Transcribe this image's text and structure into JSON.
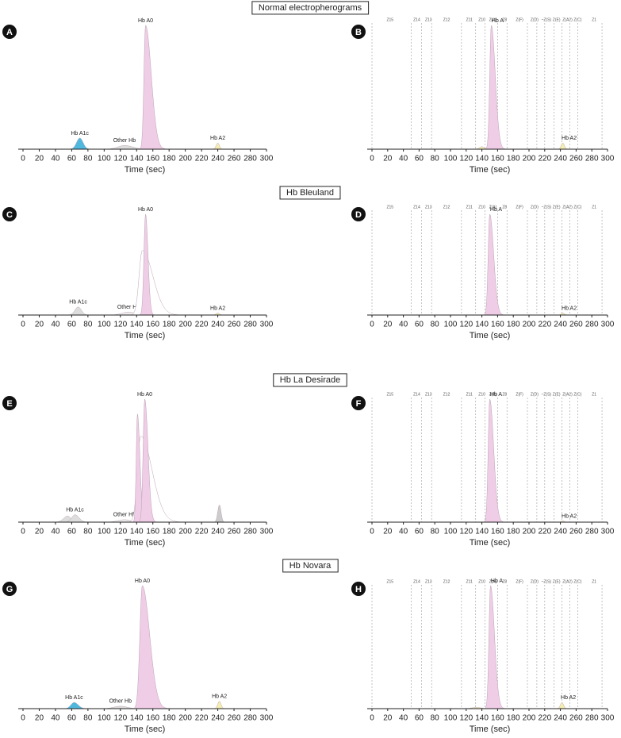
{
  "chart_data": [
    {
      "type": "electropherogram",
      "panel": "A",
      "title": "Normal electropherograms",
      "xlabel": "Time (sec)",
      "xlim": [
        0,
        300
      ],
      "xticks": [
        0,
        20,
        40,
        60,
        80,
        100,
        120,
        140,
        160,
        180,
        200,
        220,
        240,
        260,
        280,
        300
      ],
      "peaks": [
        {
          "label": "Hb A1c",
          "x": 70,
          "height": 9,
          "sd": [
            4,
            4
          ],
          "color": "#4fb8dc"
        },
        {
          "label": "Other Hb",
          "x": 125,
          "height": 3,
          "sd": [
            8,
            10
          ],
          "color": "#dddddd"
        },
        {
          "label": "Hb A0",
          "x": 151,
          "height": 100,
          "sd": [
            2,
            7
          ],
          "color": "#f0cde6"
        },
        {
          "label": "Hb A2",
          "x": 240,
          "height": 5,
          "sd": [
            2,
            2
          ],
          "color": "#f5eeb0"
        }
      ]
    },
    {
      "type": "zone-electropherogram",
      "panel": "B",
      "xlabel": "Time (sec)",
      "xlim": [
        0,
        300
      ],
      "xticks": [
        0,
        20,
        40,
        60,
        80,
        100,
        120,
        140,
        160,
        180,
        200,
        220,
        240,
        260,
        280,
        300
      ],
      "zones": [
        {
          "label": "Z15",
          "x": 23
        },
        {
          "label": "Z14",
          "x": 57
        },
        {
          "label": "Z13",
          "x": 72
        },
        {
          "label": "Z12",
          "x": 95
        },
        {
          "label": "Z11",
          "x": 124
        },
        {
          "label": "Z10",
          "x": 140
        },
        {
          "label": "Z(A)",
          "x": 154
        },
        {
          "label": "Z8",
          "x": 169
        },
        {
          "label": "Z(F)",
          "x": 188
        },
        {
          "label": "Z(D)",
          "x": 207
        },
        {
          "label": "~Z(S)",
          "x": 222
        },
        {
          "label": "Z(E)",
          "x": 235
        },
        {
          "label": "Z(A2)",
          "x": 249
        },
        {
          "label": "Z(C)",
          "x": 262
        },
        {
          "label": "Z1",
          "x": 283
        }
      ],
      "zone_lines": [
        0,
        50,
        63,
        76,
        114,
        132,
        144,
        160,
        172,
        198,
        210,
        220,
        232,
        242,
        252,
        262,
        293
      ],
      "peaks": [
        {
          "x": 140,
          "height": 2,
          "sd": [
            3,
            3
          ],
          "color": "#f5eeb0"
        },
        {
          "label": "Hb A",
          "x": 152,
          "height": 100,
          "sd": [
            2,
            5
          ],
          "color": "#f0cde6"
        },
        {
          "label": "Hb A2",
          "x": 243,
          "height": 5,
          "sd": [
            2,
            2
          ],
          "color": "#f5eeb0"
        }
      ]
    },
    {
      "type": "electropherogram",
      "panel": "C",
      "title": "Hb Bleuland",
      "xlabel": "Time (sec)",
      "xlim": [
        0,
        300
      ],
      "xticks": [
        0,
        20,
        40,
        60,
        80,
        100,
        120,
        140,
        160,
        180,
        200,
        220,
        240,
        260,
        280,
        300
      ],
      "peaks": [
        {
          "label": "Hb A1c",
          "x": 68,
          "height": 8,
          "sd": [
            4,
            4
          ],
          "color": "#dddddd"
        },
        {
          "label": "Other Hb",
          "x": 130,
          "height": 3,
          "sd": [
            8,
            8
          ],
          "color": "#eeeeee"
        },
        {
          "x": 147,
          "height": 64,
          "sd": [
            4,
            13
          ],
          "color": "#ffffff"
        },
        {
          "label": "Hb A0",
          "x": 151,
          "height": 100,
          "sd": [
            2,
            3
          ],
          "color": "#f0cde6"
        },
        {
          "label": "Hb A2",
          "x": 240,
          "height": 2,
          "sd": [
            2,
            2
          ],
          "color": "#f5eeb0"
        }
      ]
    },
    {
      "type": "zone-electropherogram",
      "panel": "D",
      "xlabel": "Time (sec)",
      "xlim": [
        0,
        300
      ],
      "xticks": [
        0,
        20,
        40,
        60,
        80,
        100,
        120,
        140,
        160,
        180,
        200,
        220,
        240,
        260,
        280,
        300
      ],
      "zones": [
        {
          "label": "Z15",
          "x": 23
        },
        {
          "label": "Z14",
          "x": 57
        },
        {
          "label": "Z13",
          "x": 72
        },
        {
          "label": "Z12",
          "x": 95
        },
        {
          "label": "Z11",
          "x": 124
        },
        {
          "label": "Z10",
          "x": 140
        },
        {
          "label": "Z(A)",
          "x": 154
        },
        {
          "label": "Z8",
          "x": 169
        },
        {
          "label": "Z(F)",
          "x": 188
        },
        {
          "label": "Z(D)",
          "x": 207
        },
        {
          "label": "~Z(S)",
          "x": 222
        },
        {
          "label": "Z(E)",
          "x": 235
        },
        {
          "label": "Z(A2)",
          "x": 249
        },
        {
          "label": "Z(C)",
          "x": 262
        },
        {
          "label": "Z1",
          "x": 283
        }
      ],
      "zone_lines": [
        0,
        50,
        63,
        76,
        114,
        132,
        144,
        160,
        172,
        198,
        210,
        220,
        232,
        242,
        252,
        262,
        293
      ],
      "peaks": [
        {
          "label": "Hb A",
          "x": 150,
          "height": 100,
          "sd": [
            2,
            5
          ],
          "color": "#f0cde6"
        },
        {
          "label": "Hb A2",
          "x": 243,
          "height": 2,
          "sd": [
            2,
            2
          ],
          "color": "#f5eeb0"
        }
      ]
    },
    {
      "type": "electropherogram",
      "panel": "E",
      "title": "Hb La Desirade",
      "xlabel": "Time (sec)",
      "xlim": [
        0,
        300
      ],
      "xticks": [
        0,
        20,
        40,
        60,
        80,
        100,
        120,
        140,
        160,
        180,
        200,
        220,
        240,
        260,
        280,
        300
      ],
      "peaks": [
        {
          "x": 55,
          "height": 5,
          "sd": [
            5,
            4
          ],
          "color": "#dddddd"
        },
        {
          "label": "Hb A1c",
          "x": 64,
          "height": 6,
          "sd": [
            4,
            5
          ],
          "color": "#dddddd"
        },
        {
          "label": "Other Hb",
          "x": 125,
          "height": 2,
          "sd": [
            8,
            8
          ],
          "color": "#eeeeee"
        },
        {
          "x": 145,
          "height": 70,
          "sd": [
            4,
            14
          ],
          "color": "#ffffff"
        },
        {
          "x": 141,
          "height": 88,
          "sd": [
            1.5,
            3
          ],
          "color": "#f0cde6"
        },
        {
          "label": "Hb A0",
          "x": 150,
          "height": 100,
          "sd": [
            2,
            4
          ],
          "color": "#f0cde6"
        },
        {
          "x": 242,
          "height": 14,
          "sd": [
            2,
            2
          ],
          "color": "#cccccc"
        }
      ]
    },
    {
      "type": "zone-electropherogram",
      "panel": "F",
      "xlabel": "Time (sec)",
      "xlim": [
        0,
        300
      ],
      "xticks": [
        0,
        20,
        40,
        60,
        80,
        100,
        120,
        140,
        160,
        180,
        200,
        220,
        240,
        260,
        280,
        300
      ],
      "zones": [
        {
          "label": "Z15",
          "x": 23
        },
        {
          "label": "Z14",
          "x": 57
        },
        {
          "label": "Z13",
          "x": 72
        },
        {
          "label": "Z12",
          "x": 95
        },
        {
          "label": "Z11",
          "x": 124
        },
        {
          "label": "Z10",
          "x": 140
        },
        {
          "label": "Z(A)",
          "x": 154
        },
        {
          "label": "Z8",
          "x": 169
        },
        {
          "label": "Z(F)",
          "x": 188
        },
        {
          "label": "Z(D)",
          "x": 207
        },
        {
          "label": "~Z(S)",
          "x": 222
        },
        {
          "label": "Z(E)",
          "x": 235
        },
        {
          "label": "Z(A2)",
          "x": 249
        },
        {
          "label": "Z(C)",
          "x": 262
        },
        {
          "label": "Z1",
          "x": 283
        }
      ],
      "zone_lines": [
        0,
        50,
        63,
        76,
        114,
        132,
        144,
        160,
        172,
        198,
        210,
        220,
        232,
        242,
        252,
        262,
        293
      ],
      "peaks": [
        {
          "label": "Hb A",
          "x": 150,
          "height": 100,
          "sd": [
            2,
            5
          ],
          "color": "#f0cde6"
        },
        {
          "label": "Hb A2",
          "x": 243,
          "height": 1,
          "sd": [
            2,
            2
          ],
          "color": "#f5eeb0"
        }
      ]
    },
    {
      "type": "electropherogram",
      "panel": "G",
      "title": "Hb Novara",
      "xlabel": "Time (sec)",
      "xlim": [
        0,
        300
      ],
      "xticks": [
        0,
        20,
        40,
        60,
        80,
        100,
        120,
        140,
        160,
        180,
        200,
        220,
        240,
        260,
        280,
        300
      ],
      "peaks": [
        {
          "label": "Hb A1c",
          "x": 63,
          "height": 5,
          "sd": [
            4,
            5
          ],
          "color": "#4fb8dc"
        },
        {
          "label": "Other Hb",
          "x": 120,
          "height": 2,
          "sd": [
            8,
            8
          ],
          "color": "#dddddd"
        },
        {
          "label": "Hb A0",
          "x": 147,
          "height": 100,
          "sd": [
            3,
            9
          ],
          "color": "#f0cde6"
        },
        {
          "label": "Hb A2",
          "x": 242,
          "height": 6,
          "sd": [
            2,
            2
          ],
          "color": "#f5eeb0"
        }
      ]
    },
    {
      "type": "zone-electropherogram",
      "panel": "H",
      "xlabel": "Time (sec)",
      "xlim": [
        0,
        300
      ],
      "xticks": [
        0,
        20,
        40,
        60,
        80,
        100,
        120,
        140,
        160,
        180,
        200,
        220,
        240,
        260,
        280,
        300
      ],
      "zones": [
        {
          "label": "Z15",
          "x": 23
        },
        {
          "label": "Z14",
          "x": 57
        },
        {
          "label": "Z13",
          "x": 72
        },
        {
          "label": "Z12",
          "x": 95
        },
        {
          "label": "Z11",
          "x": 124
        },
        {
          "label": "Z10",
          "x": 140
        },
        {
          "label": "Z(A)",
          "x": 154
        },
        {
          "label": "Z8",
          "x": 169
        },
        {
          "label": "Z(F)",
          "x": 188
        },
        {
          "label": "Z(D)",
          "x": 207
        },
        {
          "label": "~Z(S)",
          "x": 222
        },
        {
          "label": "Z(E)",
          "x": 235
        },
        {
          "label": "Z(A2)",
          "x": 249
        },
        {
          "label": "Z(C)",
          "x": 262
        },
        {
          "label": "Z1",
          "x": 283
        }
      ],
      "zone_lines": [
        0,
        50,
        63,
        76,
        114,
        132,
        144,
        160,
        172,
        198,
        210,
        220,
        232,
        242,
        252,
        262,
        293
      ],
      "peaks": [
        {
          "x": 133,
          "height": 1,
          "sd": [
            6,
            6
          ],
          "color": "#f5eeb0"
        },
        {
          "label": "Hb A",
          "x": 151,
          "height": 100,
          "sd": [
            2,
            5
          ],
          "color": "#f0cde6"
        },
        {
          "label": "Hb A2",
          "x": 242,
          "height": 5,
          "sd": [
            2,
            2
          ],
          "color": "#f5eeb0"
        }
      ]
    }
  ]
}
